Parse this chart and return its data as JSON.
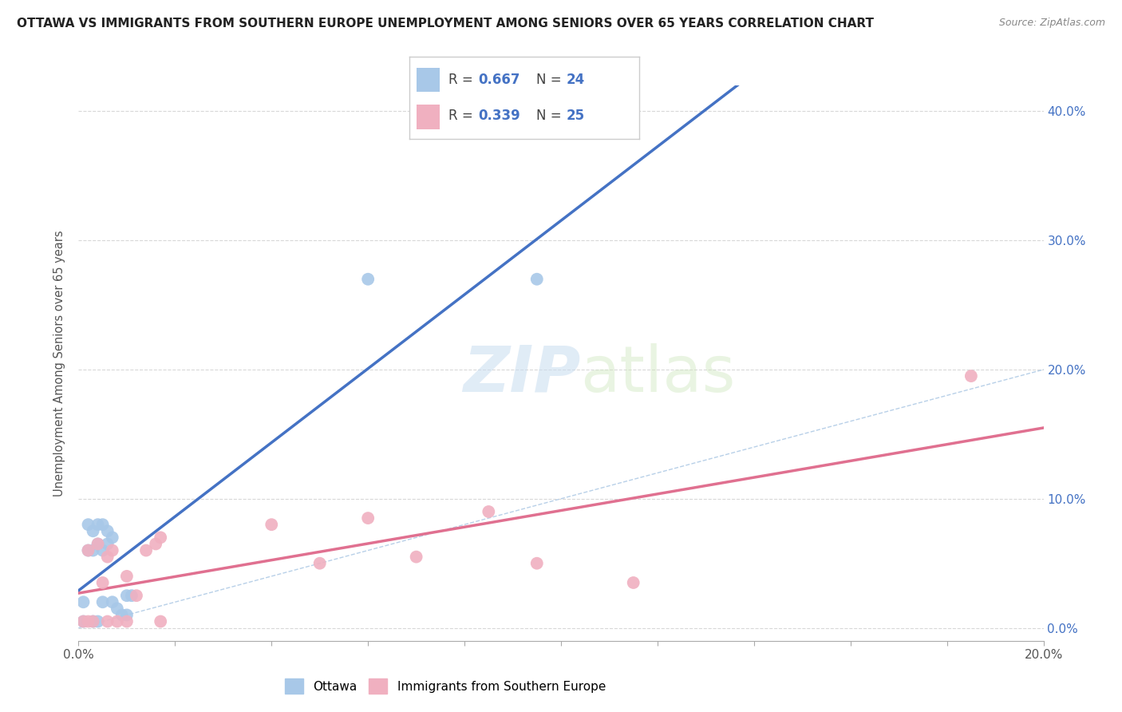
{
  "title": "OTTAWA VS IMMIGRANTS FROM SOUTHERN EUROPE UNEMPLOYMENT AMONG SENIORS OVER 65 YEARS CORRELATION CHART",
  "source": "Source: ZipAtlas.com",
  "ylabel": "Unemployment Among Seniors over 65 years",
  "xlim": [
    0.0,
    0.2
  ],
  "ylim": [
    -0.01,
    0.42
  ],
  "x_ticks": [
    0.0,
    0.02,
    0.04,
    0.06,
    0.08,
    0.1,
    0.12,
    0.14,
    0.16,
    0.18,
    0.2
  ],
  "x_tick_labels_show": [
    "0.0%",
    "",
    "",
    "",
    "",
    "",
    "",
    "",
    "",
    "",
    "20.0%"
  ],
  "y_ticks": [
    0.0,
    0.1,
    0.2,
    0.3,
    0.4
  ],
  "y_tick_labels": [
    "0.0%",
    "10.0%",
    "20.0%",
    "30.0%",
    "40.0%"
  ],
  "ottawa_R": 0.667,
  "ottawa_N": 24,
  "immigrants_R": 0.339,
  "immigrants_N": 25,
  "ottawa_color": "#a8c8e8",
  "immigrants_color": "#f0b0c0",
  "ottawa_line_color": "#4472c4",
  "immigrants_line_color": "#e07090",
  "diagonal_color": "#b8d0e8",
  "watermark_zip": "ZIP",
  "watermark_atlas": "atlas",
  "ottawa_x": [
    0.001,
    0.001,
    0.002,
    0.002,
    0.003,
    0.003,
    0.003,
    0.004,
    0.004,
    0.004,
    0.005,
    0.005,
    0.005,
    0.006,
    0.006,
    0.007,
    0.007,
    0.008,
    0.009,
    0.01,
    0.01,
    0.011,
    0.06,
    0.095
  ],
  "ottawa_y": [
    0.005,
    0.02,
    0.06,
    0.08,
    0.005,
    0.06,
    0.075,
    0.005,
    0.065,
    0.08,
    0.02,
    0.06,
    0.08,
    0.065,
    0.075,
    0.02,
    0.07,
    0.015,
    0.01,
    0.01,
    0.025,
    0.025,
    0.27,
    0.27
  ],
  "immigrants_x": [
    0.001,
    0.002,
    0.002,
    0.003,
    0.004,
    0.005,
    0.006,
    0.006,
    0.007,
    0.008,
    0.01,
    0.01,
    0.012,
    0.014,
    0.016,
    0.017,
    0.017,
    0.04,
    0.05,
    0.06,
    0.07,
    0.085,
    0.095,
    0.115,
    0.185
  ],
  "immigrants_y": [
    0.005,
    0.005,
    0.06,
    0.005,
    0.065,
    0.035,
    0.005,
    0.055,
    0.06,
    0.005,
    0.04,
    0.005,
    0.025,
    0.06,
    0.065,
    0.005,
    0.07,
    0.08,
    0.05,
    0.085,
    0.055,
    0.09,
    0.05,
    0.035,
    0.195
  ]
}
